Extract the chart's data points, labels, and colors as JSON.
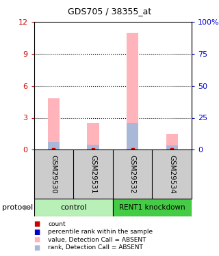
{
  "title": "GDS705 / 38355_at",
  "samples": [
    "GSM29530",
    "GSM29531",
    "GSM29532",
    "GSM29534"
  ],
  "bar_values": [
    4.8,
    2.5,
    11.0,
    1.5
  ],
  "rank_values": [
    0.7,
    0.5,
    2.5,
    0.4
  ],
  "left_ylim": [
    0,
    12
  ],
  "right_ylim": [
    0,
    100
  ],
  "left_yticks": [
    0,
    3,
    6,
    9,
    12
  ],
  "right_yticks": [
    0,
    25,
    50,
    75,
    100
  ],
  "right_yticklabels": [
    "0",
    "25",
    "50",
    "75",
    "100%"
  ],
  "left_tick_color": "#cc0000",
  "right_tick_color": "#0000cc",
  "bar_color": "#ffb3ba",
  "rank_color": "#aab8d8",
  "bar_width": 0.3,
  "groups": [
    {
      "label": "control",
      "color": "#b8f0b8"
    },
    {
      "label": "RENT1 knockdown",
      "color": "#44cc44"
    }
  ],
  "group_label_prefix": "protocol",
  "legend_items": [
    {
      "color": "#cc0000",
      "label": "count"
    },
    {
      "color": "#0000cc",
      "label": "percentile rank within the sample"
    },
    {
      "color": "#ffb3ba",
      "label": "value, Detection Call = ABSENT"
    },
    {
      "color": "#aab8d8",
      "label": "rank, Detection Call = ABSENT"
    }
  ],
  "bg_color": "#ffffff",
  "sample_box_color": "#cccccc"
}
